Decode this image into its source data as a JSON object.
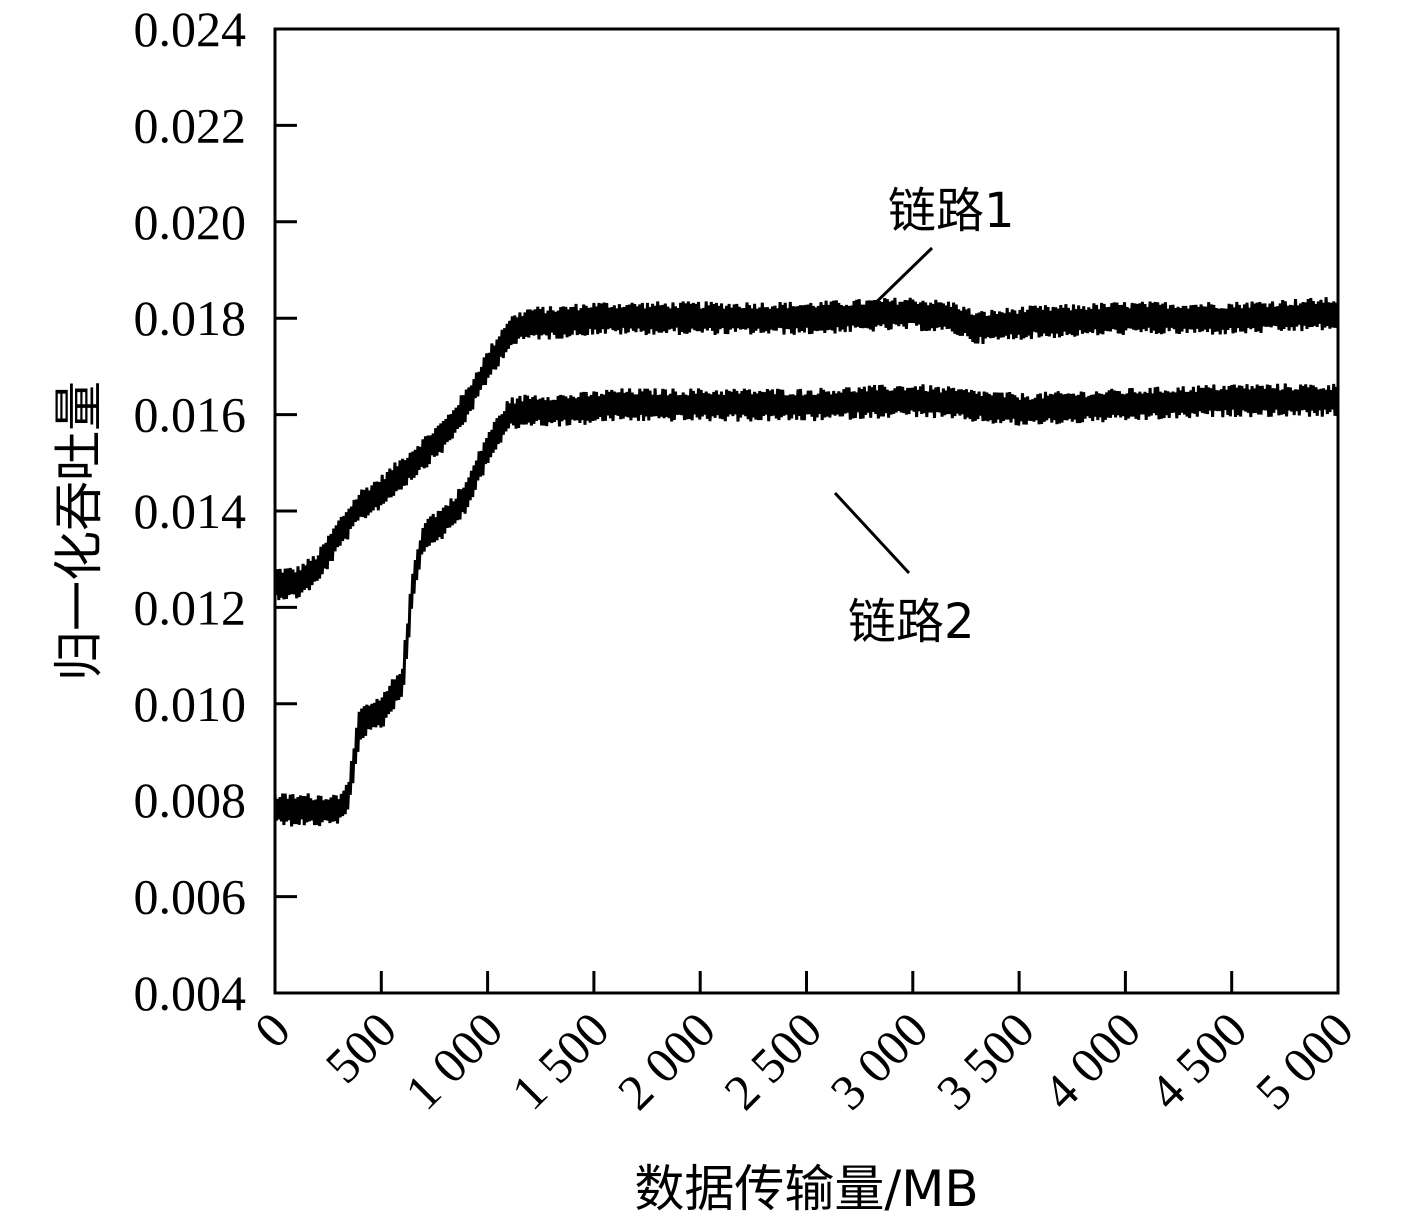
{
  "chart_data": {
    "type": "line",
    "xlabel": "数据传输量/MB",
    "ylabel": "归一化吞吐量",
    "xlim": [
      0,
      5000
    ],
    "ylim": [
      0.004,
      0.024
    ],
    "x_ticks": [
      0,
      500,
      1000,
      1500,
      2000,
      2500,
      3000,
      3500,
      4000,
      4500,
      5000
    ],
    "x_tick_labels": [
      "0",
      "500",
      "1 000",
      "1 500",
      "2 000",
      "2 500",
      "3 000",
      "3 500",
      "4 000",
      "4 500",
      "5 000"
    ],
    "y_ticks": [
      0.004,
      0.006,
      0.008,
      0.01,
      0.012,
      0.014,
      0.016,
      0.018,
      0.02,
      0.022,
      0.024
    ],
    "y_tick_labels": [
      "0.004",
      "0.006",
      "0.008",
      "0.010",
      "0.012",
      "0.014",
      "0.016",
      "0.018",
      "0.020",
      "0.022",
      "0.024"
    ],
    "grid": false,
    "legend": "none",
    "annotations": [
      {
        "text": "链路1",
        "target_series": "链路1",
        "x": 2750,
        "y": 0.0183
      },
      {
        "text": "链路2",
        "target_series": "链路2",
        "x": 2630,
        "y": 0.0158
      }
    ],
    "series": [
      {
        "name": "链路1",
        "color": "#000000",
        "noise_amplitude": 0.00035,
        "x": [
          0,
          100,
          200,
          300,
          400,
          500,
          600,
          700,
          800,
          900,
          1000,
          1100,
          1200,
          1300,
          1500,
          2000,
          2500,
          3000,
          3200,
          3300,
          3500,
          4000,
          4500,
          5000
        ],
        "y": [
          0.0125,
          0.0125,
          0.0128,
          0.0135,
          0.0141,
          0.0144,
          0.0148,
          0.0152,
          0.0156,
          0.0162,
          0.017,
          0.0177,
          0.0179,
          0.0179,
          0.018,
          0.018,
          0.018,
          0.0181,
          0.018,
          0.0178,
          0.0179,
          0.018,
          0.018,
          0.0181
        ]
      },
      {
        "name": "链路2",
        "color": "#000000",
        "noise_amplitude": 0.00035,
        "x": [
          0,
          100,
          200,
          300,
          350,
          400,
          500,
          600,
          650,
          700,
          800,
          900,
          1000,
          1100,
          1200,
          1400,
          1600,
          2000,
          2500,
          3000,
          3500,
          4000,
          4500,
          5000
        ],
        "y": [
          0.0078,
          0.0078,
          0.0078,
          0.0078,
          0.0082,
          0.0096,
          0.0098,
          0.0105,
          0.0125,
          0.0135,
          0.0138,
          0.0143,
          0.0153,
          0.016,
          0.0161,
          0.0161,
          0.0162,
          0.0162,
          0.0162,
          0.0163,
          0.0161,
          0.0162,
          0.0163,
          0.0163
        ]
      }
    ]
  }
}
